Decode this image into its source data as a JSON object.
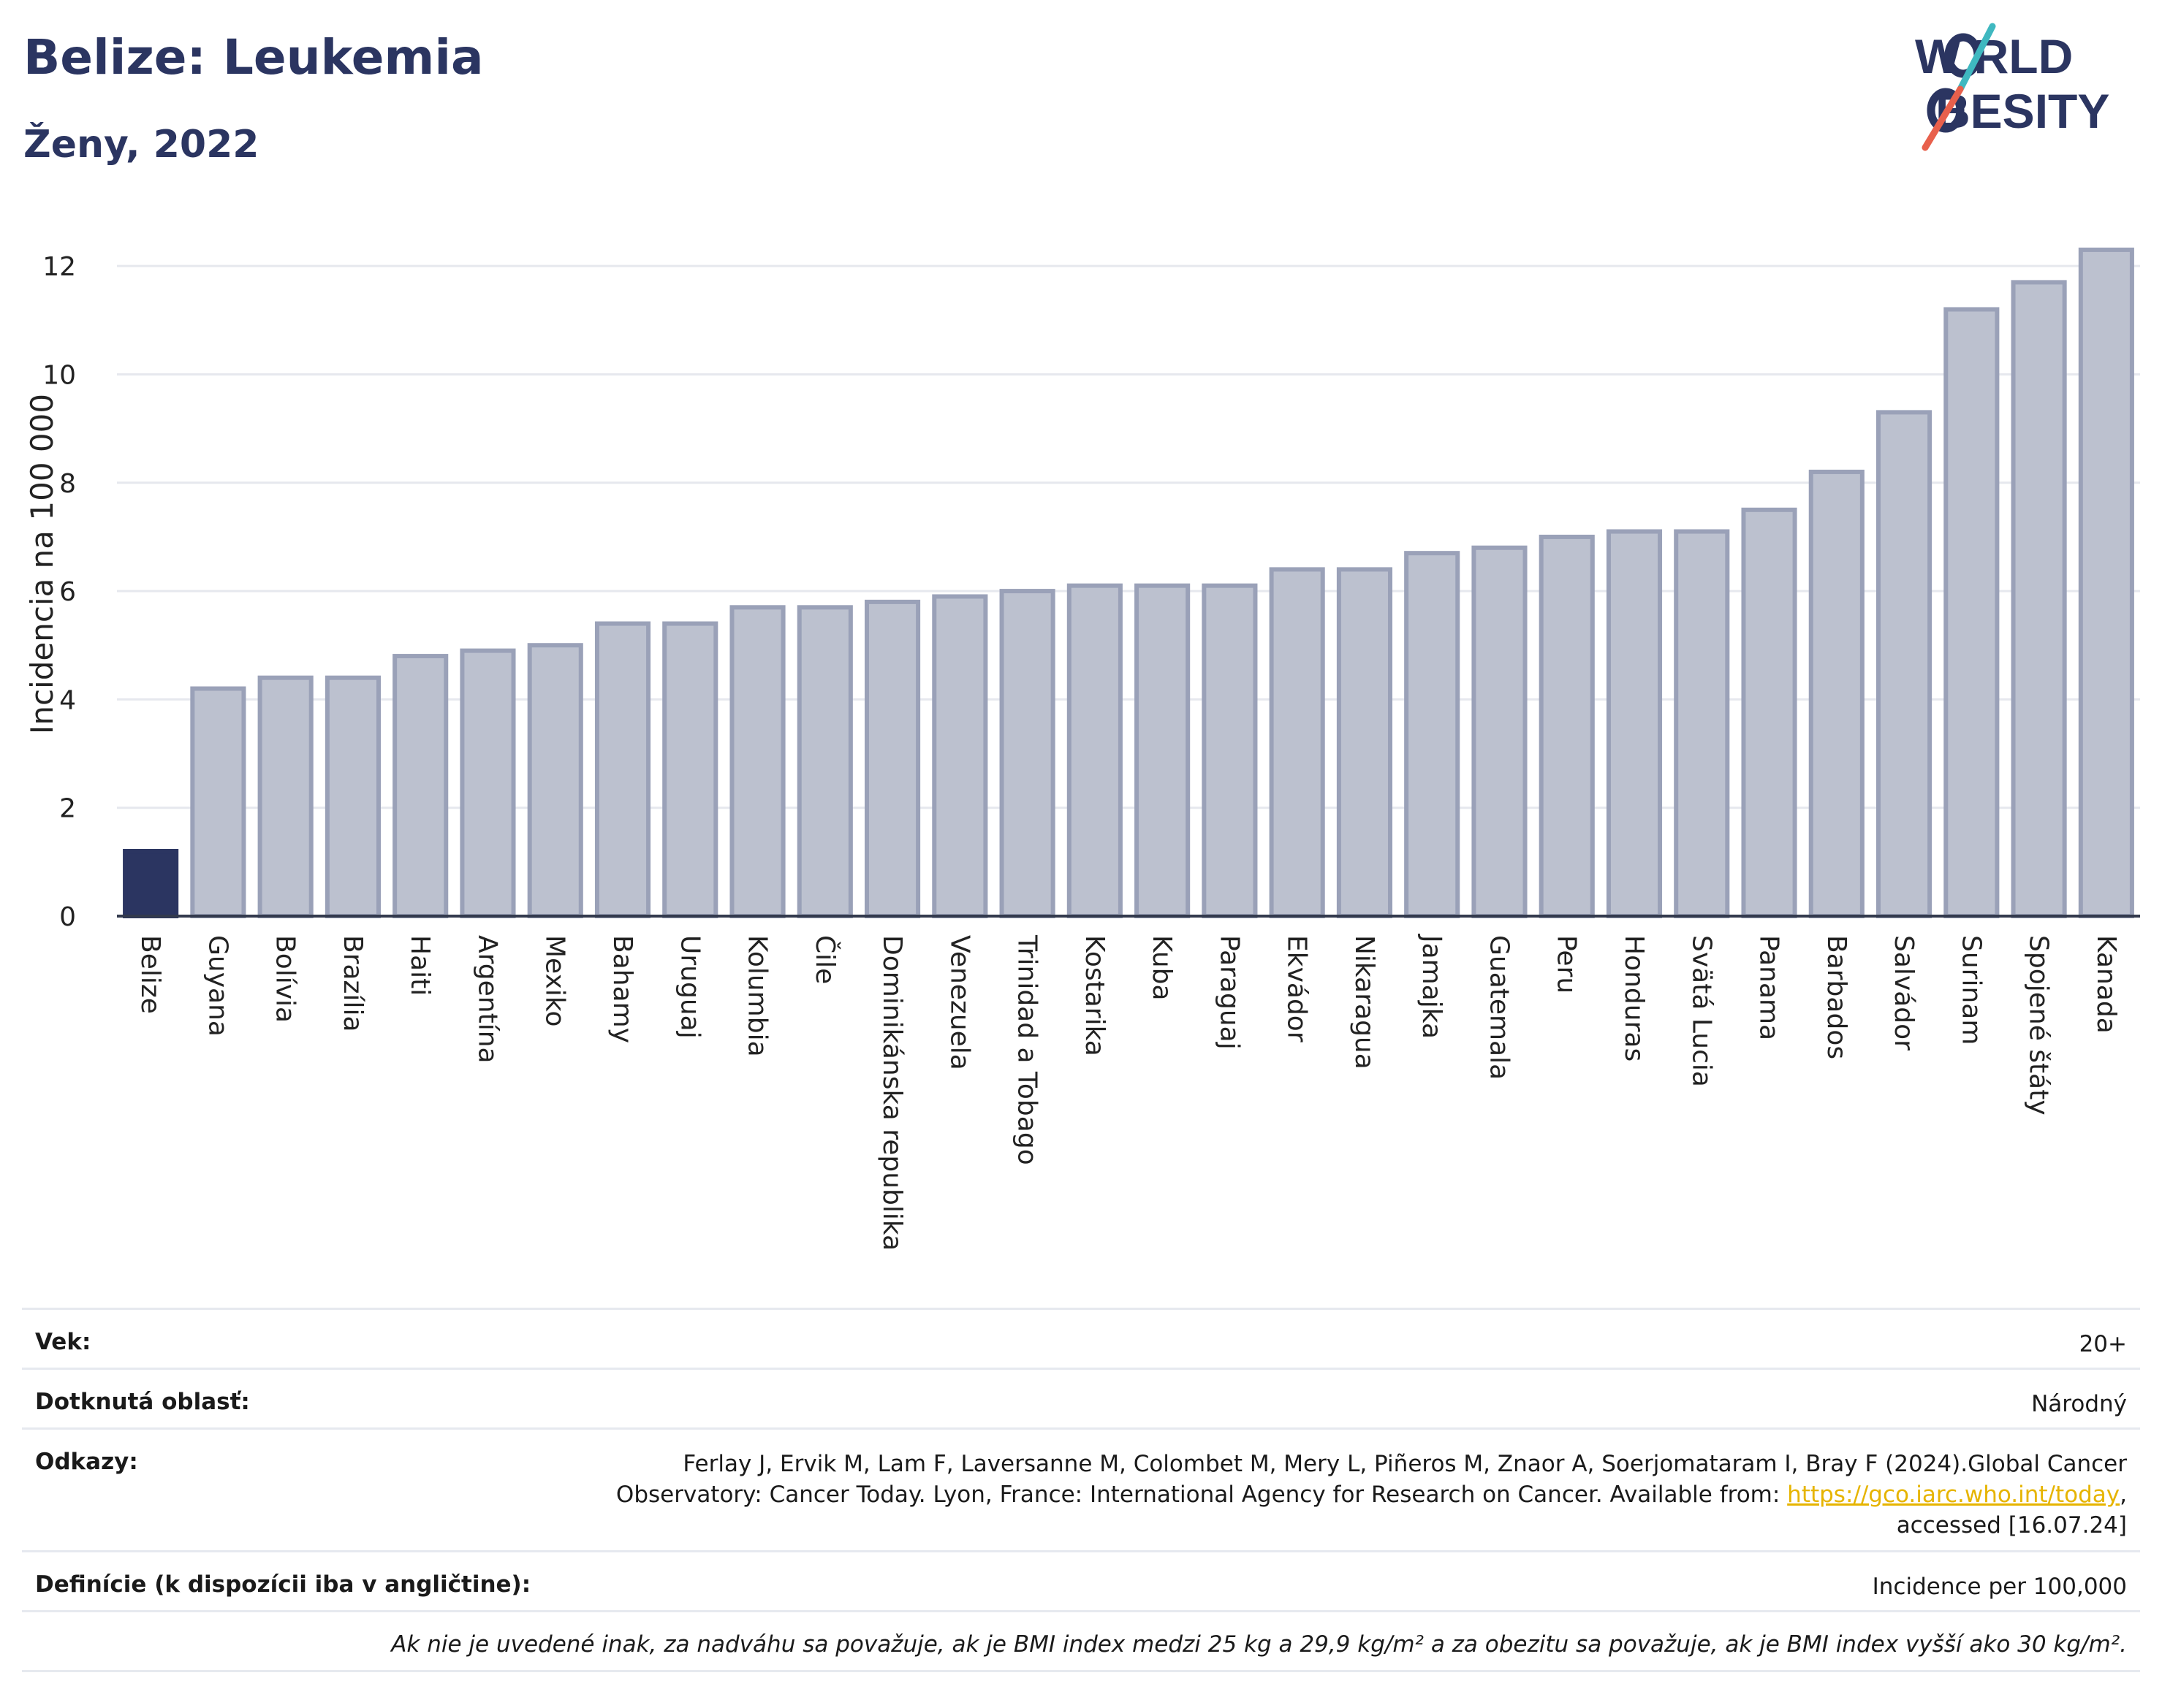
{
  "header": {
    "title": "Belize: Leukemia",
    "subtitle": "Ženy, 2022"
  },
  "logo": {
    "line1": "W RLD",
    "line2": "BESITY",
    "text": "WORLD OBESITY",
    "colors": {
      "text": "#2b3561",
      "slash_teal": "#3fb8c0",
      "slash_red": "#e8604c"
    }
  },
  "chart_data": {
    "type": "bar",
    "ylabel": "Incidencia na 100 000",
    "ylim": [
      0,
      13
    ],
    "yticks": [
      0,
      2,
      4,
      6,
      8,
      10,
      12
    ],
    "grid": true,
    "categories": [
      "Belize",
      "Guyana",
      "Bolívia",
      "Brazília",
      "Haiti",
      "Argentína",
      "Mexiko",
      "Bahamy",
      "Uruguaj",
      "Kolumbia",
      "Čile",
      "Dominikánska republika",
      "Venezuela",
      "Trinidad a Tobago",
      "Kostarika",
      "Kuba",
      "Paraguaj",
      "Ekvádor",
      "Nikaragua",
      "Jamajka",
      "Guatemala",
      "Peru",
      "Honduras",
      "Svätá Lucia",
      "Panama",
      "Barbados",
      "Salvádor",
      "Surinam",
      "Spojené štáty",
      "Kanada"
    ],
    "values": [
      1.2,
      4.2,
      4.4,
      4.4,
      4.8,
      4.9,
      5.0,
      5.4,
      5.4,
      5.7,
      5.7,
      5.8,
      5.9,
      6.0,
      6.1,
      6.1,
      6.1,
      6.4,
      6.4,
      6.7,
      6.8,
      7.0,
      7.1,
      7.1,
      7.5,
      8.2,
      9.3,
      11.2,
      11.7,
      12.3
    ],
    "highlight": "Belize",
    "colors": {
      "highlight": "#2b3561",
      "bar": "#bcc1cf",
      "bar_border": "#9aa1b8"
    }
  },
  "meta": {
    "vek_label": "Vek:",
    "vek_value": "20+",
    "oblast_label": "Dotknutá oblasť:",
    "oblast_value": "Národný",
    "odkazy_label": "Odkazy:",
    "odkazy_text1": "Ferlay J, Ervik M, Lam F, Laversanne M, Colombet M, Mery L, Piñeros M, Znaor A, Soerjomataram I, Bray F (2024).Global Cancer",
    "odkazy_text2": "Observatory: Cancer Today. Lyon, France: International Agency for Research on Cancer. Available from: ",
    "odkazy_link": "https://gco.iarc.who.int/today",
    "odkazy_text3": ",",
    "odkazy_text4": "accessed [16.07.24]",
    "definicie_label": "Definície (k dispozícii iba v angličtine):",
    "definicie_value": "Incidence per 100,000",
    "note": "Ak nie je uvedené inak, za nadváhu sa považuje, ak je BMI index medzi 25 kg a 29,9 kg/m² a za obezitu sa považuje, ak je BMI index vyšší ako 30 kg/m²."
  }
}
